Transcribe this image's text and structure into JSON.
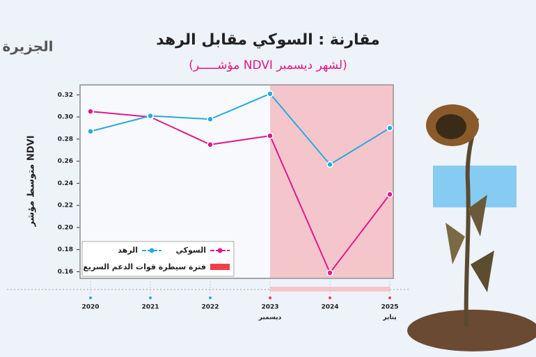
{
  "logo": "الجزيرة",
  "chart_data": {
    "type": "line",
    "title": "مقارنة : السوكي مقابل الرهد",
    "subtitle": "(مؤشـــــر NDVI لشهر ديسمبر)",
    "y_label": "متوسط مؤشر NDVI",
    "categories": [
      "2020",
      "2021",
      "2022",
      "2023",
      "2024",
      "2025"
    ],
    "category_sublabels": [
      null,
      null,
      null,
      "ديسمبر",
      null,
      "يناير"
    ],
    "series": [
      {
        "name": "السوكي",
        "color": "#e0198a",
        "values": [
          0.305,
          0.3,
          0.275,
          0.283,
          0.159,
          0.23
        ]
      },
      {
        "name": "الرهد",
        "color": "#29a9e0",
        "values": [
          0.287,
          0.301,
          0.298,
          0.321,
          0.257,
          0.29
        ]
      }
    ],
    "highlight": {
      "name": "فترة سيطرة قوات الدعم السريع",
      "color": "#f5c5cc",
      "legend_color": "#f03e4a",
      "from": "2023"
    },
    "ylim": [
      0.154,
      0.329
    ],
    "yticks": [
      0.16,
      0.18,
      {
        "value": 0.2,
        "label": "0.20"
      },
      0.22,
      0.24,
      0.26,
      0.28,
      {
        "value": 0.3,
        "label": "0.30"
      },
      0.32
    ],
    "grid": false
  }
}
